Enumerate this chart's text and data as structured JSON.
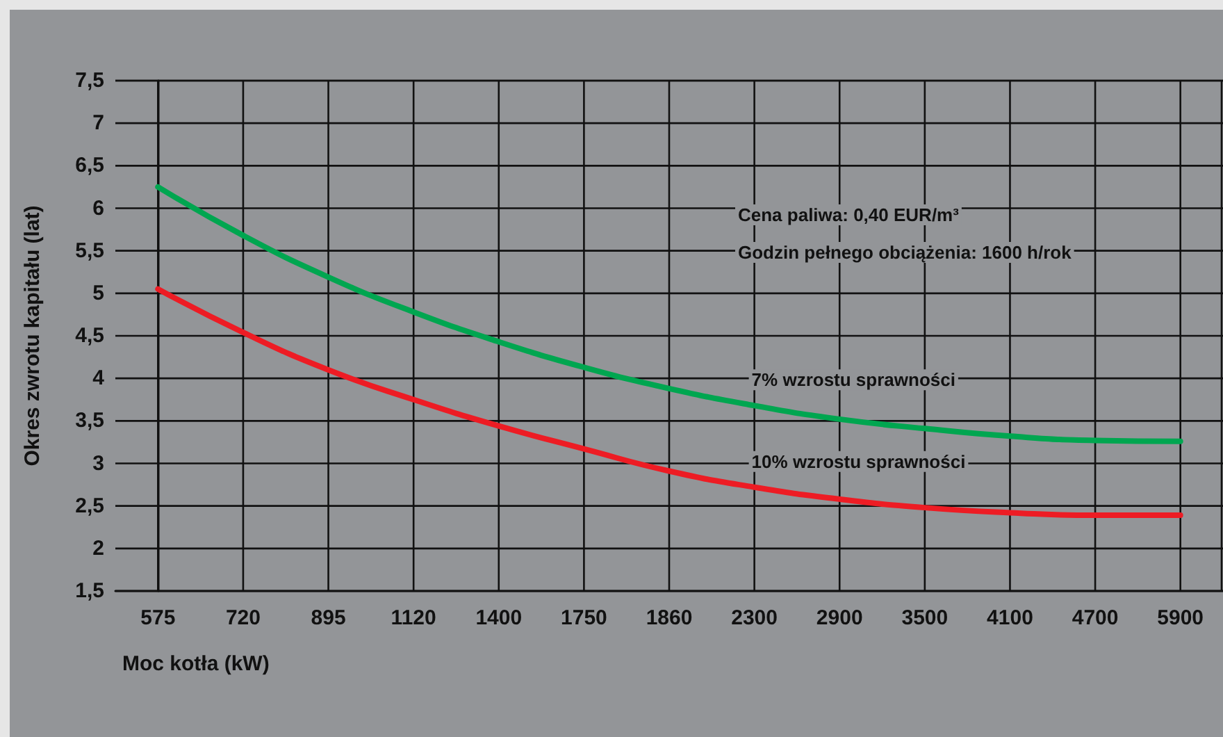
{
  "chart_data": {
    "type": "line",
    "xlabel": "Moc kotła (kW)",
    "ylabel": "Okres zwrotu kapitału (lat)",
    "categories": [
      "575",
      "720",
      "895",
      "1120",
      "1400",
      "1750",
      "1860",
      "2300",
      "2900",
      "3500",
      "4100",
      "4700",
      "5900"
    ],
    "series": [
      {
        "name": "7% wzrostu sprawności",
        "color": "#00a650",
        "values": [
          6.25,
          5.68,
          5.19,
          4.78,
          4.43,
          4.13,
          3.88,
          3.68,
          3.52,
          3.41,
          3.32,
          3.27,
          3.26
        ]
      },
      {
        "name": "10% wzrostu sprawności",
        "color": "#ed1c24",
        "values": [
          5.05,
          4.54,
          4.1,
          3.75,
          3.44,
          3.17,
          2.91,
          2.72,
          2.58,
          2.48,
          2.42,
          2.39,
          2.39
        ]
      }
    ],
    "ylim": [
      1.5,
      7.5
    ],
    "yticks": [
      {
        "value": 1.5,
        "label": "1,5"
      },
      2,
      {
        "value": 2.5,
        "label": "2,5"
      },
      3,
      {
        "value": 3.5,
        "label": "3,5"
      },
      4,
      {
        "value": 4.5,
        "label": "4,5"
      },
      5,
      {
        "value": 5.5,
        "label": "5,5"
      },
      6,
      {
        "value": 6.5,
        "label": "6,5"
      },
      7,
      {
        "value": 7.5,
        "label": "7,5"
      }
    ],
    "annotations": [
      "Cena paliwa: 0,40 EUR/m³",
      "Godzin pełnego obciążenia: 1600 h/rok"
    ],
    "grid": true,
    "legend": false,
    "marker": "none",
    "line_style": "solid"
  }
}
